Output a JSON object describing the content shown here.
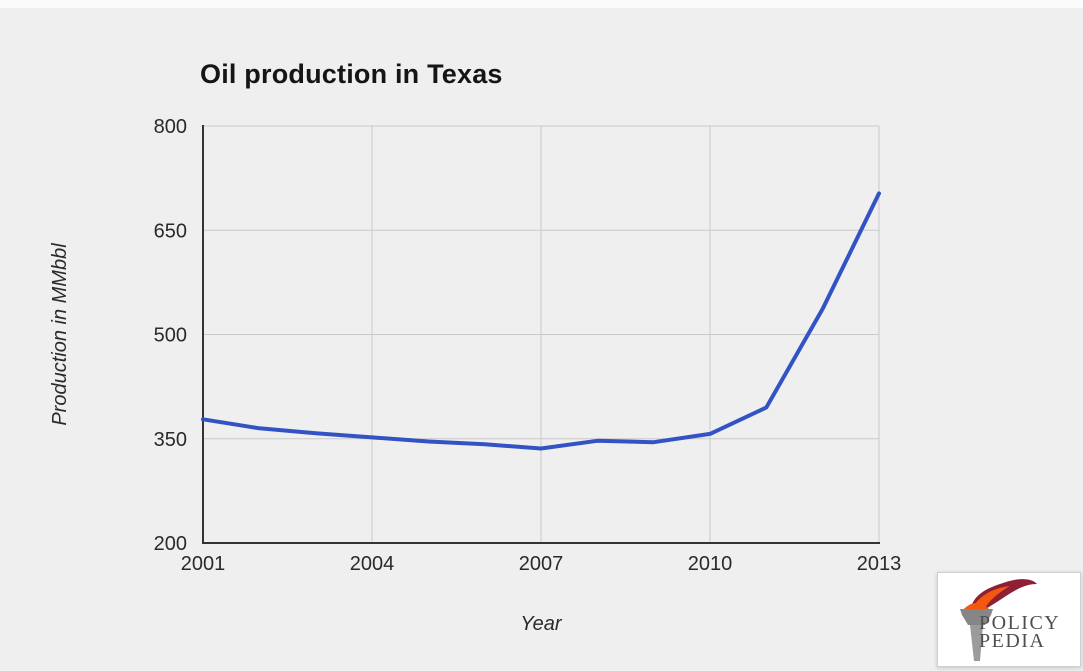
{
  "page": {
    "background": "#efefef"
  },
  "chart_data": {
    "type": "line",
    "title": "Oil production in Texas",
    "xlabel": "Year",
    "ylabel": "Production in MMbbl",
    "x": [
      2001,
      2002,
      2003,
      2004,
      2005,
      2006,
      2007,
      2008,
      2009,
      2010,
      2011,
      2012,
      2013
    ],
    "values": [
      378,
      365,
      358,
      352,
      346,
      342,
      336,
      347,
      345,
      357,
      395,
      537,
      703
    ],
    "xlim": [
      2001,
      2013
    ],
    "ylim": [
      200,
      800
    ],
    "xticks": [
      2001,
      2004,
      2007,
      2010,
      2013
    ],
    "yticks": [
      200,
      350,
      500,
      650,
      800
    ],
    "grid": true,
    "legend": false,
    "series_color": "#3353c5"
  },
  "colors": {
    "bg": "#efefef",
    "top-strip": "#fbfbfb",
    "grid": "#c9c9c9",
    "axis": "#333333",
    "line": "#3353c5",
    "tick": "#2a2a2a",
    "title": "#151515",
    "logo-text": "#4f4f4f",
    "flame-orange": "#f4570f",
    "flame-red": "#8e1f35",
    "torch-gray": "#9b9b9b",
    "torch-gray-dark": "#868686",
    "logo-bg": "#ffffff",
    "logo-border": "#d0d0d0"
  },
  "logo": {
    "icon": "torch-icon",
    "line1": "POLICY",
    "line2": "PEDIA"
  }
}
